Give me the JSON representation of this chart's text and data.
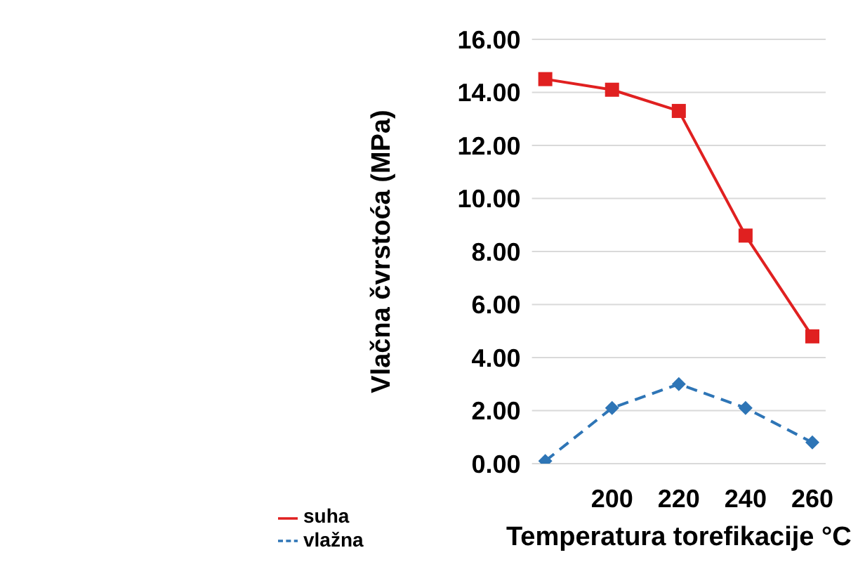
{
  "chart_data": {
    "type": "line",
    "xlabel": "Temperatura  torefikacije  °C",
    "ylabel": "Vlačna  čvrstoća  (MPa)",
    "categories": [
      null,
      "200",
      "220",
      "240",
      "260"
    ],
    "series": [
      {
        "name": "suha",
        "color": "#e02020",
        "values": [
          14.5,
          14.1,
          13.3,
          8.6,
          4.8
        ],
        "marker": "square",
        "line_style": "solid"
      },
      {
        "name": "vlažna",
        "color": "#2e75b6",
        "values": [
          0.1,
          2.1,
          3.0,
          2.1,
          0.8
        ],
        "marker": "diamond",
        "line_style": "dashed"
      }
    ],
    "ylim": [
      0,
      16
    ],
    "yticks": [
      {
        "value": 0,
        "label": "0.00"
      },
      {
        "value": 2,
        "label": "2.00"
      },
      {
        "value": 4,
        "label": "4.00"
      },
      {
        "value": 6,
        "label": "6.00"
      },
      {
        "value": 8,
        "label": "8.00"
      },
      {
        "value": 10,
        "label": "10.00"
      },
      {
        "value": 12,
        "label": "12.00"
      },
      {
        "value": 14,
        "label": "14.00"
      },
      {
        "value": 16,
        "label": "16.00"
      }
    ],
    "grid": "y",
    "legend": "bottom"
  }
}
